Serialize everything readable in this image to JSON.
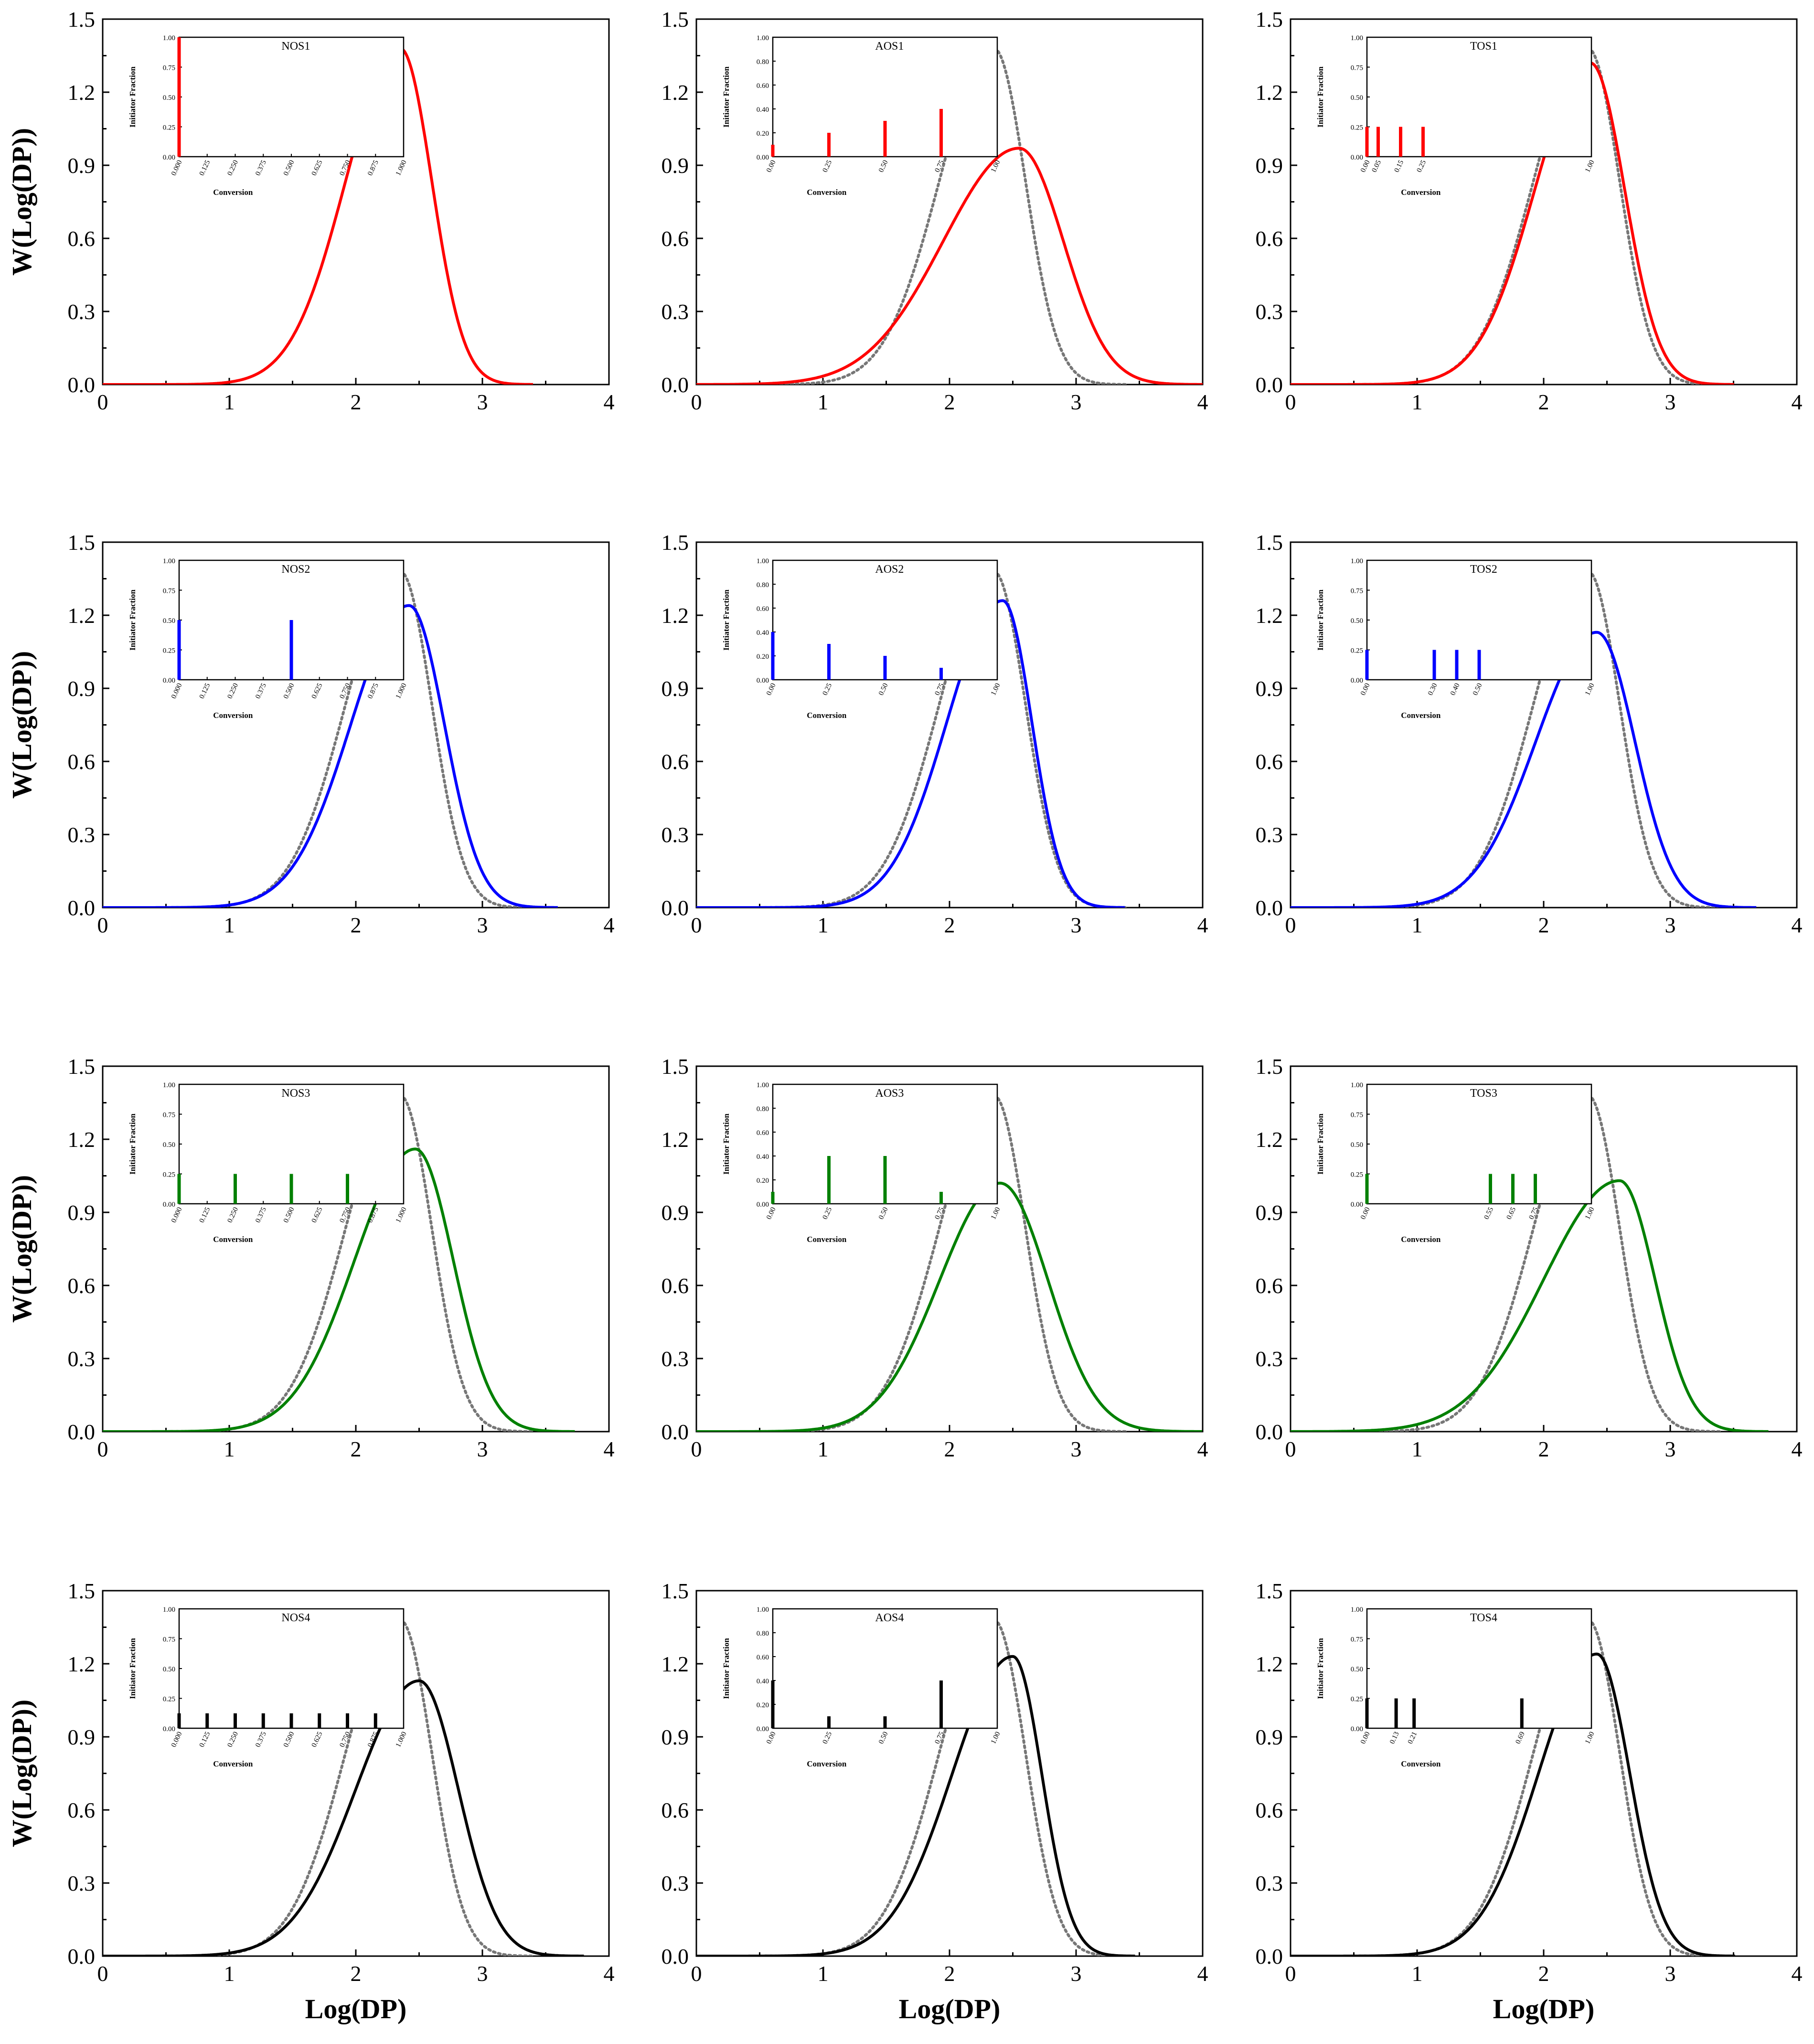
{
  "figure": {
    "ylabel": "W(Log(DP))",
    "xlabel": "Log(DP)",
    "inset_ylabel": "Initiator Fraction",
    "inset_xlabel": "Conversion"
  },
  "colors": {
    "row1": "#ff0000",
    "row2": "#0000ff",
    "row3": "#008000",
    "row4": "#000000",
    "reference": "#777777",
    "axis": "#000000"
  },
  "chart_data": [
    {
      "id": "NOS1",
      "type": "line",
      "title": "NOS1",
      "xlabel": "Log(DP)",
      "ylabel": "W(Log(DP))",
      "xlim": [
        0,
        4
      ],
      "ylim": [
        0,
        1.5
      ],
      "xticks": [
        "0",
        "1",
        "2",
        "3",
        "4"
      ],
      "yticks": [
        "0.0",
        "0.3",
        "0.6",
        "0.9",
        "1.2",
        "1.5"
      ],
      "series": [
        {
          "name": "NOS1",
          "color": "row1",
          "peak_x": 2.35,
          "peak_y": 1.38,
          "sigma_left": 0.43,
          "sigma_right": 0.25
        }
      ],
      "reference": null,
      "inset": {
        "type": "bar",
        "title": "NOS1",
        "xlabel": "Conversion",
        "ylabel": "Initiator Fraction",
        "ylim": [
          0,
          1
        ],
        "yticks": [
          "0.00",
          "0.25",
          "0.50",
          "0.75",
          "1.00"
        ],
        "xticks": [
          "0.000",
          "0.125",
          "0.250",
          "0.375",
          "0.500",
          "0.625",
          "0.750",
          "0.875",
          "1.000"
        ],
        "bars": [
          {
            "x": 0.0,
            "y": 1.0
          }
        ]
      }
    },
    {
      "id": "AOS1",
      "type": "line",
      "title": "AOS1",
      "xlabel": "Log(DP)",
      "ylabel": "W(Log(DP))",
      "xlim": [
        0,
        4
      ],
      "ylim": [
        0,
        1.5
      ],
      "xticks": [
        "0",
        "1",
        "2",
        "3",
        "4"
      ],
      "yticks": [
        "0.0",
        "0.3",
        "0.6",
        "0.9",
        "1.2",
        "1.5"
      ],
      "series": [
        {
          "name": "AOS1",
          "color": "row1",
          "peak_x": 2.55,
          "peak_y": 0.97,
          "sigma_left": 0.6,
          "sigma_right": 0.35
        }
      ],
      "reference": {
        "name": "NOS1",
        "peak_x": 2.35,
        "peak_y": 1.38,
        "sigma_left": 0.43,
        "sigma_right": 0.25
      },
      "inset": {
        "type": "bar",
        "title": "AOS1",
        "xlabel": "Conversion",
        "ylabel": "Initiator Fraction",
        "ylim": [
          0,
          1
        ],
        "yticks": [
          "0.00",
          "0.20",
          "0.40",
          "0.60",
          "0.80",
          "1.00"
        ],
        "xticks": [
          "0.00",
          "0.25",
          "0.50",
          "0.75",
          "1.00"
        ],
        "bars": [
          {
            "x": 0.0,
            "y": 0.1
          },
          {
            "x": 0.25,
            "y": 0.2
          },
          {
            "x": 0.5,
            "y": 0.3
          },
          {
            "x": 0.75,
            "y": 0.4
          }
        ]
      }
    },
    {
      "id": "TOS1",
      "type": "line",
      "title": "TOS1",
      "xlabel": "Log(DP)",
      "ylabel": "W(Log(DP))",
      "xlim": [
        0,
        4
      ],
      "ylim": [
        0,
        1.5
      ],
      "xticks": [
        "0",
        "1",
        "2",
        "3",
        "4"
      ],
      "yticks": [
        "0.0",
        "0.3",
        "0.6",
        "0.9",
        "1.2",
        "1.5"
      ],
      "series": [
        {
          "name": "TOS1",
          "color": "row1",
          "peak_x": 2.37,
          "peak_y": 1.32,
          "sigma_left": 0.44,
          "sigma_right": 0.27
        }
      ],
      "reference": {
        "name": "NOS1",
        "peak_x": 2.35,
        "peak_y": 1.38,
        "sigma_left": 0.43,
        "sigma_right": 0.25
      },
      "inset": {
        "type": "bar",
        "title": "TOS1",
        "xlabel": "Conversion",
        "ylabel": "Initiator Fraction",
        "ylim": [
          0,
          1
        ],
        "yticks": [
          "0.00",
          "0.25",
          "0.50",
          "0.75",
          "1.00"
        ],
        "xticks": [
          "0.00",
          "0.05",
          "0.15",
          "0.25",
          "1.00"
        ],
        "bars": [
          {
            "x": 0.0,
            "y": 0.25
          },
          {
            "x": 0.05,
            "y": 0.25
          },
          {
            "x": 0.15,
            "y": 0.25
          },
          {
            "x": 0.25,
            "y": 0.25
          }
        ]
      }
    },
    {
      "id": "NOS2",
      "type": "line",
      "title": "NOS2",
      "xlabel": "Log(DP)",
      "ylabel": "W(Log(DP))",
      "xlim": [
        0,
        4
      ],
      "ylim": [
        0,
        1.5
      ],
      "xticks": [
        "0",
        "1",
        "2",
        "3",
        "4"
      ],
      "yticks": [
        "0.0",
        "0.3",
        "0.6",
        "0.9",
        "1.2",
        "1.5"
      ],
      "series": [
        {
          "name": "NOS2",
          "color": "row2",
          "peak_x": 2.42,
          "peak_y": 1.24,
          "sigma_left": 0.46,
          "sigma_right": 0.28
        }
      ],
      "reference": {
        "name": "NOS1",
        "peak_x": 2.35,
        "peak_y": 1.38,
        "sigma_left": 0.43,
        "sigma_right": 0.25
      },
      "inset": {
        "type": "bar",
        "title": "NOS2",
        "xlabel": "Conversion",
        "ylabel": "Initiator Fraction",
        "ylim": [
          0,
          1
        ],
        "yticks": [
          "0.00",
          "0.25",
          "0.50",
          "0.75",
          "1.00"
        ],
        "xticks": [
          "0.000",
          "0.125",
          "0.250",
          "0.375",
          "0.500",
          "0.625",
          "0.750",
          "0.875",
          "1.000"
        ],
        "bars": [
          {
            "x": 0.0,
            "y": 0.5
          },
          {
            "x": 0.5,
            "y": 0.5
          }
        ]
      }
    },
    {
      "id": "AOS2",
      "type": "line",
      "title": "AOS2",
      "xlabel": "Log(DP)",
      "ylabel": "W(Log(DP))",
      "xlim": [
        0,
        4
      ],
      "ylim": [
        0,
        1.5
      ],
      "xticks": [
        "0",
        "1",
        "2",
        "3",
        "4"
      ],
      "yticks": [
        "0.0",
        "0.3",
        "0.6",
        "0.9",
        "1.2",
        "1.5"
      ],
      "series": [
        {
          "name": "AOS2",
          "color": "row2",
          "peak_x": 2.42,
          "peak_y": 1.26,
          "sigma_left": 0.44,
          "sigma_right": 0.23
        }
      ],
      "reference": {
        "name": "NOS1",
        "peak_x": 2.35,
        "peak_y": 1.38,
        "sigma_left": 0.43,
        "sigma_right": 0.25
      },
      "inset": {
        "type": "bar",
        "title": "AOS2",
        "xlabel": "Conversion",
        "ylabel": "Initiator Fraction",
        "ylim": [
          0,
          1
        ],
        "yticks": [
          "0.00",
          "0.20",
          "0.40",
          "0.60",
          "0.80",
          "1.00"
        ],
        "xticks": [
          "0.00",
          "0.25",
          "0.50",
          "0.75",
          "1.00"
        ],
        "bars": [
          {
            "x": 0.0,
            "y": 0.4
          },
          {
            "x": 0.25,
            "y": 0.3
          },
          {
            "x": 0.5,
            "y": 0.2
          },
          {
            "x": 0.75,
            "y": 0.1
          }
        ]
      }
    },
    {
      "id": "TOS2",
      "type": "line",
      "title": "TOS2",
      "xlabel": "Log(DP)",
      "ylabel": "W(Log(DP))",
      "xlim": [
        0,
        4
      ],
      "ylim": [
        0,
        1.5
      ],
      "xticks": [
        "0",
        "1",
        "2",
        "3",
        "4"
      ],
      "yticks": [
        "0.0",
        "0.3",
        "0.6",
        "0.9",
        "1.2",
        "1.5"
      ],
      "series": [
        {
          "name": "TOS2",
          "color": "row2",
          "peak_x": 2.42,
          "peak_y": 1.13,
          "sigma_left": 0.48,
          "sigma_right": 0.3
        }
      ],
      "reference": {
        "name": "NOS1",
        "peak_x": 2.35,
        "peak_y": 1.38,
        "sigma_left": 0.43,
        "sigma_right": 0.25
      },
      "inset": {
        "type": "bar",
        "title": "TOS2",
        "xlabel": "Conversion",
        "ylabel": "Initiator Fraction",
        "ylim": [
          0,
          1
        ],
        "yticks": [
          "0.00",
          "0.25",
          "0.50",
          "0.75",
          "1.00"
        ],
        "xticks": [
          "0.00",
          "0.30",
          "0.40",
          "0.50",
          "1.00"
        ],
        "bars": [
          {
            "x": 0.0,
            "y": 0.25
          },
          {
            "x": 0.3,
            "y": 0.25
          },
          {
            "x": 0.4,
            "y": 0.25
          },
          {
            "x": 0.5,
            "y": 0.25
          }
        ]
      }
    },
    {
      "id": "NOS3",
      "type": "line",
      "title": "NOS3",
      "xlabel": "Log(DP)",
      "ylabel": "W(Log(DP))",
      "xlim": [
        0,
        4
      ],
      "ylim": [
        0,
        1.5
      ],
      "xticks": [
        "0",
        "1",
        "2",
        "3",
        "4"
      ],
      "yticks": [
        "0.0",
        "0.3",
        "0.6",
        "0.9",
        "1.2",
        "1.5"
      ],
      "series": [
        {
          "name": "NOS3",
          "color": "row3",
          "peak_x": 2.47,
          "peak_y": 1.16,
          "sigma_left": 0.48,
          "sigma_right": 0.3
        }
      ],
      "reference": {
        "name": "NOS1",
        "peak_x": 2.35,
        "peak_y": 1.38,
        "sigma_left": 0.43,
        "sigma_right": 0.25
      },
      "inset": {
        "type": "bar",
        "title": "NOS3",
        "xlabel": "Conversion",
        "ylabel": "Initiator Fraction",
        "ylim": [
          0,
          1
        ],
        "yticks": [
          "0.00",
          "0.25",
          "0.50",
          "0.75",
          "1.00"
        ],
        "xticks": [
          "0.000",
          "0.125",
          "0.250",
          "0.375",
          "0.500",
          "0.625",
          "0.750",
          "0.875",
          "1.000"
        ],
        "bars": [
          {
            "x": 0.0,
            "y": 0.25
          },
          {
            "x": 0.25,
            "y": 0.25
          },
          {
            "x": 0.5,
            "y": 0.25
          },
          {
            "x": 0.75,
            "y": 0.25
          }
        ]
      }
    },
    {
      "id": "AOS3",
      "type": "line",
      "title": "AOS3",
      "xlabel": "Log(DP)",
      "ylabel": "W(Log(DP))",
      "xlim": [
        0,
        4
      ],
      "ylim": [
        0,
        1.5
      ],
      "xticks": [
        "0",
        "1",
        "2",
        "3",
        "4"
      ],
      "yticks": [
        "0.0",
        "0.3",
        "0.6",
        "0.9",
        "1.2",
        "1.5"
      ],
      "series": [
        {
          "name": "AOS3",
          "color": "row3",
          "peak_x": 2.4,
          "peak_y": 1.02,
          "sigma_left": 0.48,
          "sigma_right": 0.38
        }
      ],
      "reference": {
        "name": "NOS1",
        "peak_x": 2.35,
        "peak_y": 1.38,
        "sigma_left": 0.43,
        "sigma_right": 0.25
      },
      "inset": {
        "type": "bar",
        "title": "AOS3",
        "xlabel": "Conversion",
        "ylabel": "Initiator Fraction",
        "ylim": [
          0,
          1
        ],
        "yticks": [
          "0.00",
          "0.20",
          "0.40",
          "0.60",
          "0.80",
          "1.00"
        ],
        "xticks": [
          "0.00",
          "0.25",
          "0.50",
          "0.75",
          "1.00"
        ],
        "bars": [
          {
            "x": 0.0,
            "y": 0.1
          },
          {
            "x": 0.25,
            "y": 0.4
          },
          {
            "x": 0.5,
            "y": 0.4
          },
          {
            "x": 0.75,
            "y": 0.1
          }
        ]
      }
    },
    {
      "id": "TOS3",
      "type": "line",
      "title": "TOS3",
      "xlabel": "Log(DP)",
      "ylabel": "W(Log(DP))",
      "xlim": [
        0,
        4
      ],
      "ylim": [
        0,
        1.5
      ],
      "xticks": [
        "0",
        "1",
        "2",
        "3",
        "4"
      ],
      "yticks": [
        "0.0",
        "0.3",
        "0.6",
        "0.9",
        "1.2",
        "1.5"
      ],
      "series": [
        {
          "name": "TOS3",
          "color": "row3",
          "peak_x": 2.6,
          "peak_y": 1.03,
          "sigma_left": 0.6,
          "sigma_right": 0.28
        }
      ],
      "reference": {
        "name": "NOS1",
        "peak_x": 2.35,
        "peak_y": 1.38,
        "sigma_left": 0.43,
        "sigma_right": 0.25
      },
      "inset": {
        "type": "bar",
        "title": "TOS3",
        "xlabel": "Conversion",
        "ylabel": "Initiator Fraction",
        "ylim": [
          0,
          1
        ],
        "yticks": [
          "0.00",
          "0.25",
          "0.50",
          "0.75",
          "1.00"
        ],
        "xticks": [
          "0.00",
          "0.55",
          "0.65",
          "0.75",
          "1.00"
        ],
        "bars": [
          {
            "x": 0.0,
            "y": 0.25
          },
          {
            "x": 0.55,
            "y": 0.25
          },
          {
            "x": 0.65,
            "y": 0.25
          },
          {
            "x": 0.75,
            "y": 0.25
          }
        ]
      }
    },
    {
      "id": "NOS4",
      "type": "line",
      "title": "NOS4",
      "xlabel": "Log(DP)",
      "ylabel": "W(Log(DP))",
      "xlim": [
        0,
        4
      ],
      "ylim": [
        0,
        1.5
      ],
      "xticks": [
        "0",
        "1",
        "2",
        "3",
        "4"
      ],
      "yticks": [
        "0.0",
        "0.3",
        "0.6",
        "0.9",
        "1.2",
        "1.5"
      ],
      "series": [
        {
          "name": "NOS4",
          "color": "row4",
          "peak_x": 2.5,
          "peak_y": 1.13,
          "sigma_left": 0.5,
          "sigma_right": 0.31
        }
      ],
      "reference": {
        "name": "NOS1",
        "peak_x": 2.35,
        "peak_y": 1.38,
        "sigma_left": 0.43,
        "sigma_right": 0.25
      },
      "inset": {
        "type": "bar",
        "title": "NOS4",
        "xlabel": "Conversion",
        "ylabel": "Initiator Fraction",
        "ylim": [
          0,
          1
        ],
        "yticks": [
          "0.00",
          "0.25",
          "0.50",
          "0.75",
          "1.00"
        ],
        "xticks": [
          "0.000",
          "0.125",
          "0.250",
          "0.375",
          "0.500",
          "0.625",
          "0.750",
          "0.875",
          "1.000"
        ],
        "bars": [
          {
            "x": 0.0,
            "y": 0.125
          },
          {
            "x": 0.125,
            "y": 0.125
          },
          {
            "x": 0.25,
            "y": 0.125
          },
          {
            "x": 0.375,
            "y": 0.125
          },
          {
            "x": 0.5,
            "y": 0.125
          },
          {
            "x": 0.625,
            "y": 0.125
          },
          {
            "x": 0.75,
            "y": 0.125
          },
          {
            "x": 0.875,
            "y": 0.125
          }
        ]
      }
    },
    {
      "id": "AOS4",
      "type": "line",
      "title": "AOS4",
      "xlabel": "Log(DP)",
      "ylabel": "W(Log(DP))",
      "xlim": [
        0,
        4
      ],
      "ylim": [
        0,
        1.5
      ],
      "xticks": [
        "0",
        "1",
        "2",
        "3",
        "4"
      ],
      "yticks": [
        "0.0",
        "0.3",
        "0.6",
        "0.9",
        "1.2",
        "1.5"
      ],
      "series": [
        {
          "name": "AOS4",
          "color": "row4",
          "peak_x": 2.5,
          "peak_y": 1.23,
          "sigma_left": 0.48,
          "sigma_right": 0.23
        }
      ],
      "reference": {
        "name": "NOS1",
        "peak_x": 2.35,
        "peak_y": 1.38,
        "sigma_left": 0.43,
        "sigma_right": 0.25
      },
      "inset": {
        "type": "bar",
        "title": "AOS4",
        "xlabel": "Conversion",
        "ylabel": "Initiator Fraction",
        "ylim": [
          0,
          1
        ],
        "yticks": [
          "0.00",
          "0.20",
          "0.40",
          "0.60",
          "0.80",
          "1.00"
        ],
        "xticks": [
          "0.00",
          "0.25",
          "0.50",
          "0.75",
          "1.00"
        ],
        "bars": [
          {
            "x": 0.0,
            "y": 0.4
          },
          {
            "x": 0.25,
            "y": 0.1
          },
          {
            "x": 0.5,
            "y": 0.1
          },
          {
            "x": 0.75,
            "y": 0.4
          }
        ]
      }
    },
    {
      "id": "TOS4",
      "type": "line",
      "title": "TOS4",
      "xlabel": "Log(DP)",
      "ylabel": "W(Log(DP))",
      "xlim": [
        0,
        4
      ],
      "ylim": [
        0,
        1.5
      ],
      "xticks": [
        "0",
        "1",
        "2",
        "3",
        "4"
      ],
      "yticks": [
        "0.0",
        "0.3",
        "0.6",
        "0.9",
        "1.2",
        "1.5"
      ],
      "series": [
        {
          "name": "TOS4",
          "color": "row4",
          "peak_x": 2.42,
          "peak_y": 1.24,
          "sigma_left": 0.46,
          "sigma_right": 0.26
        }
      ],
      "reference": {
        "name": "NOS1",
        "peak_x": 2.35,
        "peak_y": 1.38,
        "sigma_left": 0.43,
        "sigma_right": 0.25
      },
      "inset": {
        "type": "bar",
        "title": "TOS4",
        "xlabel": "Conversion",
        "ylabel": "Initiator Fraction",
        "ylim": [
          0,
          1
        ],
        "yticks": [
          "0.00",
          "0.25",
          "0.50",
          "0.75",
          "1.00"
        ],
        "xticks": [
          "0.00",
          "0.13",
          "0.21",
          "0.69",
          "1.00"
        ],
        "bars": [
          {
            "x": 0.0,
            "y": 0.25
          },
          {
            "x": 0.13,
            "y": 0.25
          },
          {
            "x": 0.21,
            "y": 0.25
          },
          {
            "x": 0.69,
            "y": 0.25
          }
        ]
      }
    }
  ]
}
